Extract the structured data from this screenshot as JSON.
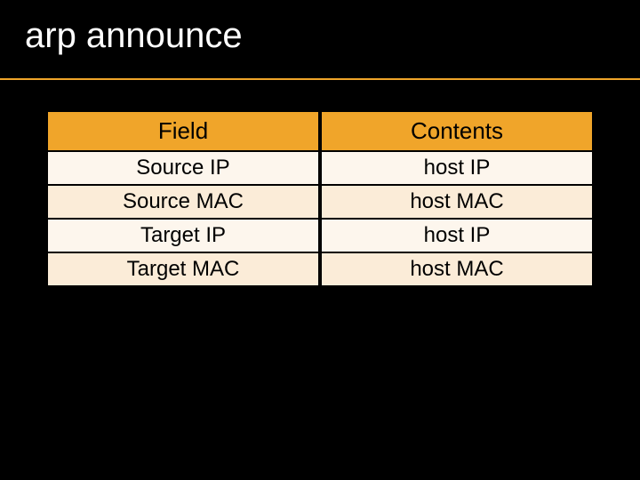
{
  "title": "arp announce",
  "colors": {
    "background": "#000000",
    "accent": "#f0a52a",
    "title_text": "#ffffff",
    "cell_text": "#000000",
    "row_odd_bg": "#fdf6ed",
    "row_even_bg": "#fbecd8"
  },
  "table": {
    "type": "table",
    "columns": [
      "Field",
      "Contents"
    ],
    "rows": [
      [
        "Source IP",
        "host IP"
      ],
      [
        "Source MAC",
        "host MAC"
      ],
      [
        "Target IP",
        "host IP"
      ],
      [
        "Target MAC",
        "host MAC"
      ]
    ],
    "header_fontsize": 26,
    "cell_fontsize": 24,
    "header_bg": "#f0a52a",
    "header_text_color": "#000000"
  },
  "title_fontsize": 40
}
